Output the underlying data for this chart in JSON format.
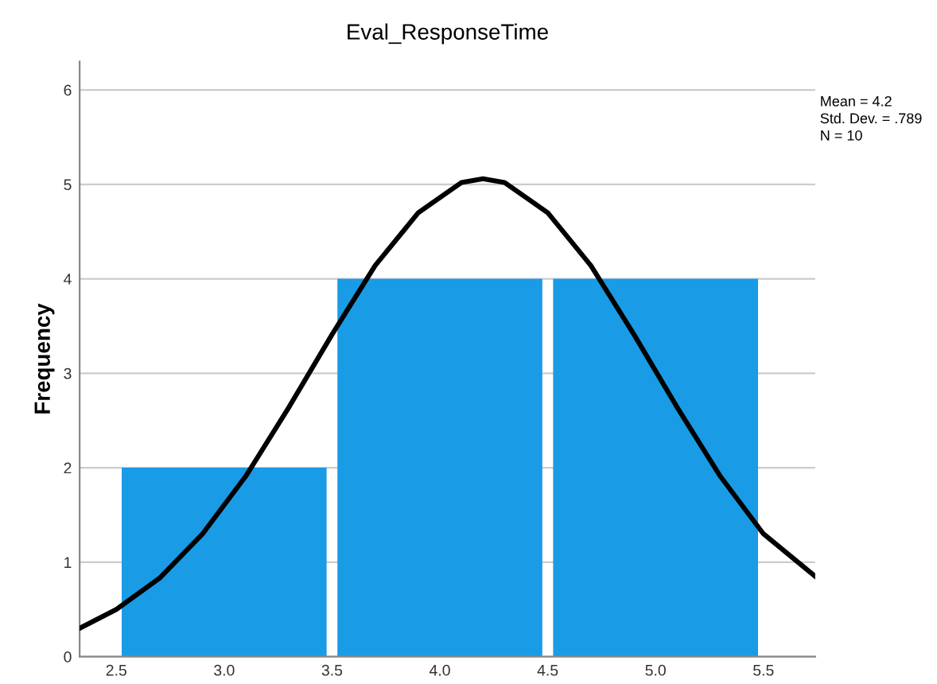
{
  "chart_data": {
    "type": "histogram",
    "title": "Eval_ResponseTime",
    "ylabel": "Frequency",
    "series": [
      {
        "bins": [
          2.5,
          3.5,
          4.5,
          5.5
        ],
        "values": [
          2,
          4,
          4
        ],
        "color": "#1a9be6"
      },
      {
        "type": "line",
        "color": "#000000",
        "x": [
          2.33,
          2.5,
          2.7,
          2.9,
          3.1,
          3.3,
          3.5,
          3.7,
          3.9,
          4.1,
          4.2,
          4.3,
          4.5,
          4.7,
          4.9,
          5.1,
          5.3,
          5.5,
          5.74
        ],
        "values": [
          0.3,
          0.5,
          0.83,
          1.3,
          1.91,
          2.64,
          3.41,
          4.14,
          4.7,
          5.02,
          5.06,
          5.02,
          4.7,
          4.14,
          3.41,
          2.64,
          1.91,
          1.3,
          0.85
        ]
      }
    ],
    "xlim": [
      2.33,
      5.74
    ],
    "xticks": [
      {
        "value": 2.5,
        "label": "2.5"
      },
      {
        "value": 3.0,
        "label": "3.0"
      },
      {
        "value": 3.5,
        "label": "3.5"
      },
      {
        "value": 4.0,
        "label": "4.0"
      },
      {
        "value": 4.5,
        "label": "4.5"
      },
      {
        "value": 5.0,
        "label": "5.0"
      },
      {
        "value": 5.5,
        "label": "5.5"
      }
    ],
    "ylim": [
      0,
      6.3
    ],
    "yticks": [
      0,
      1,
      2,
      3,
      4,
      5,
      6
    ],
    "grid": "y",
    "annotations": [
      "Mean = 4.2",
      "Std. Dev. = .789",
      "N = 10"
    ]
  }
}
